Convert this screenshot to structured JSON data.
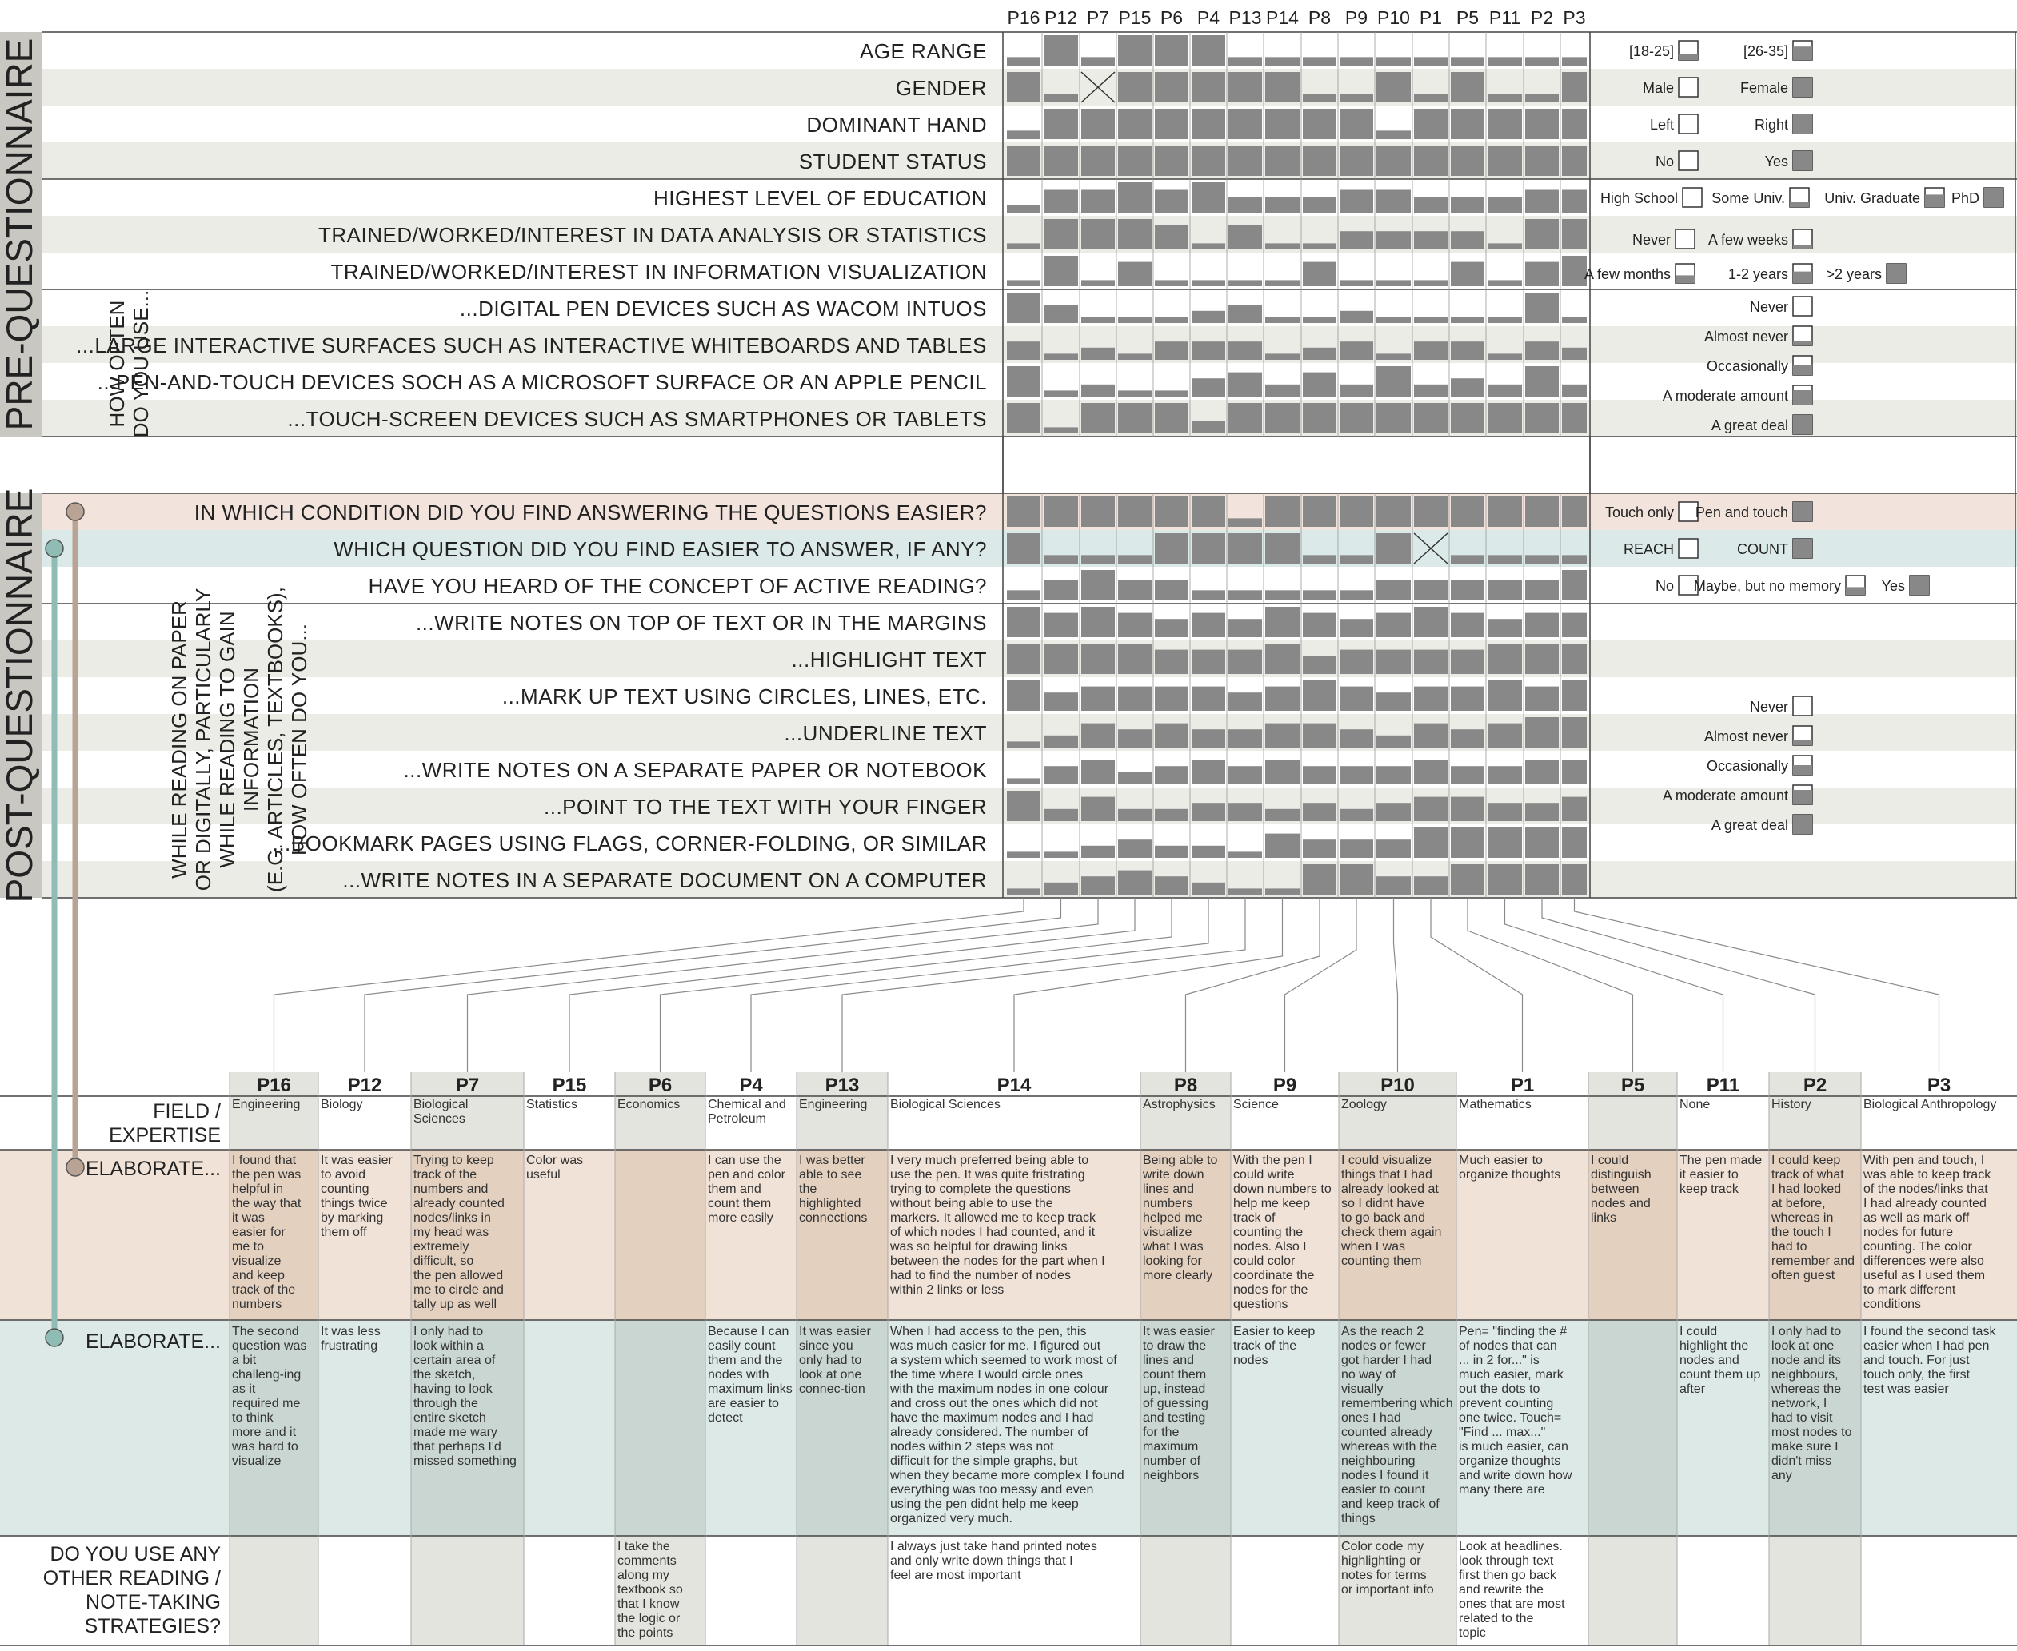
{
  "participants": [
    "P16",
    "P12",
    "P7",
    "P15",
    "P6",
    "P4",
    "P13",
    "P14",
    "P8",
    "P9",
    "P10",
    "P1",
    "P5",
    "P11",
    "P2",
    "P3"
  ],
  "sections": {
    "pre": "PRE-QUESTIONNAIRE",
    "post": "POST-QUESTIONNAIRE"
  },
  "group_labels": {
    "how_often": [
      "HOW OFTEN",
      "DO YOU USE..."
    ],
    "reading": [
      "WHILE READING ON PAPER",
      "OR DIGITALLY, PARTICULARLY",
      "WHILE READING TO GAIN",
      "INFORMATION",
      "(E.G. ARTICLES, TEXTBOOKS),",
      "HOW OFTEN DO YOU..."
    ]
  },
  "pre_questions": [
    {
      "label": "AGE RANGE",
      "levels": 2,
      "values": [
        1,
        2,
        1,
        2,
        2,
        2,
        1,
        1,
        1,
        1,
        1,
        1,
        1,
        1,
        1,
        1
      ]
    },
    {
      "label": "GENDER",
      "levels": 2,
      "values": [
        2,
        1,
        "x",
        2,
        2,
        2,
        2,
        2,
        1,
        1,
        2,
        1,
        2,
        1,
        1,
        2
      ]
    },
    {
      "label": "DOMINANT HAND",
      "levels": 2,
      "values": [
        1,
        2,
        2,
        2,
        2,
        2,
        2,
        2,
        2,
        2,
        1,
        2,
        2,
        2,
        2,
        2
      ]
    },
    {
      "label": "STUDENT STATUS",
      "levels": 2,
      "values": [
        2,
        2,
        2,
        2,
        2,
        2,
        2,
        2,
        2,
        2,
        2,
        2,
        2,
        2,
        2,
        2
      ]
    },
    {
      "label": "HIGHEST LEVEL OF EDUCATION",
      "levels": 4,
      "values": [
        1,
        3,
        3,
        4,
        3,
        4,
        2,
        2,
        2,
        3,
        3,
        2,
        2,
        2,
        3,
        3
      ]
    },
    {
      "label": "TRAINED/WORKED/INTEREST IN DATA ANALYSIS OR STATISTICS",
      "levels": 5,
      "values": [
        1,
        5,
        5,
        5,
        4,
        1,
        4,
        1,
        1,
        3,
        3,
        3,
        3,
        1,
        5,
        5
      ]
    },
    {
      "label": "TRAINED/WORKED/INTEREST IN INFORMATION VISUALIZATION",
      "levels": 5,
      "values": [
        1,
        5,
        1,
        4,
        1,
        1,
        1,
        1,
        4,
        1,
        1,
        1,
        4,
        1,
        4,
        5
      ]
    },
    {
      "label": "...DIGITAL PEN DEVICES SUCH AS WACOM INTUOS",
      "levels": 5,
      "values": [
        5,
        3,
        1,
        1,
        1,
        2,
        3,
        1,
        1,
        2,
        1,
        1,
        1,
        1,
        5,
        1
      ]
    },
    {
      "label": "...LARGE INTERACTIVE SURFACES SUCH AS INTERACTIVE WHITEBOARDS AND TABLES",
      "levels": 5,
      "values": [
        3,
        1,
        2,
        1,
        3,
        3,
        3,
        1,
        2,
        3,
        1,
        3,
        3,
        1,
        3,
        2
      ]
    },
    {
      "label": "...PEN-AND-TOUCH DEVICES SOCH AS A MICROSOFT SURFACE OR AN APPLE PENCIL",
      "levels": 5,
      "values": [
        5,
        1,
        2,
        1,
        1,
        3,
        4,
        2,
        4,
        2,
        5,
        2,
        3,
        2,
        5,
        2
      ]
    },
    {
      "label": "...TOUCH-SCREEN DEVICES SUCH AS SMARTPHONES OR TABLETS",
      "levels": 5,
      "values": [
        5,
        1,
        5,
        5,
        5,
        2,
        5,
        5,
        5,
        5,
        5,
        5,
        5,
        5,
        5,
        5
      ]
    }
  ],
  "post_questions": [
    {
      "label": "IN WHICH CONDITION DID YOU FIND ANSWERING THE QUESTIONS EASIER?",
      "levels": 2,
      "values": [
        2,
        2,
        2,
        2,
        2,
        2,
        1,
        2,
        2,
        2,
        2,
        2,
        2,
        2,
        2,
        2
      ]
    },
    {
      "label": "WHICH QUESTION DID YOU FIND EASIER TO ANSWER, IF ANY?",
      "levels": 2,
      "values": [
        2,
        1,
        1,
        1,
        2,
        2,
        2,
        2,
        1,
        1,
        2,
        "x",
        1,
        1,
        1,
        1
      ]
    },
    {
      "label": "HAVE YOU HEARD OF THE CONCEPT OF ACTIVE READING?",
      "levels": 3,
      "values": [
        1,
        2,
        3,
        2,
        2,
        1,
        1,
        1,
        1,
        1,
        2,
        2,
        2,
        2,
        2,
        3
      ]
    },
    {
      "label": "...WRITE NOTES ON TOP OF TEXT OR IN THE MARGINS",
      "levels": 5,
      "values": [
        5,
        4,
        5,
        4,
        3,
        4,
        3,
        5,
        4,
        3,
        4,
        5,
        4,
        3,
        4,
        4
      ]
    },
    {
      "label": "...HIGHLIGHT TEXT",
      "levels": 5,
      "values": [
        5,
        5,
        5,
        5,
        4,
        4,
        4,
        5,
        3,
        4,
        4,
        4,
        4,
        5,
        5,
        5
      ]
    },
    {
      "label": "...MARK UP TEXT USING CIRCLES, LINES, ETC.",
      "levels": 5,
      "values": [
        5,
        3,
        4,
        4,
        4,
        4,
        3,
        4,
        5,
        4,
        3,
        4,
        4,
        5,
        4,
        5
      ]
    },
    {
      "label": "...UNDERLINE TEXT",
      "levels": 5,
      "values": [
        1,
        2,
        4,
        3,
        4,
        3,
        3,
        4,
        4,
        3,
        2,
        4,
        3,
        4,
        5,
        5
      ]
    },
    {
      "label": "...WRITE NOTES ON A SEPARATE PAPER OR NOTEBOOK",
      "levels": 5,
      "values": [
        1,
        3,
        4,
        2,
        3,
        4,
        3,
        4,
        3,
        3,
        3,
        4,
        3,
        3,
        4,
        4
      ]
    },
    {
      "label": "...POINT TO THE TEXT WITH YOUR FINGER",
      "levels": 5,
      "values": [
        5,
        2,
        4,
        2,
        2,
        3,
        3,
        2,
        3,
        2,
        3,
        4,
        4,
        3,
        3,
        4
      ]
    },
    {
      "label": "...BOOKMARK PAGES USING FLAGS, CORNER-FOLDING, OR SIMILAR",
      "levels": 5,
      "values": [
        1,
        1,
        2,
        3,
        2,
        2,
        1,
        4,
        3,
        3,
        3,
        5,
        5,
        5,
        5,
        5
      ]
    },
    {
      "label": "...WRITE NOTES IN A SEPARATE DOCUMENT ON A COMPUTER",
      "levels": 5,
      "values": [
        1,
        2,
        3,
        4,
        3,
        2,
        1,
        1,
        5,
        5,
        3,
        3,
        5,
        5,
        5,
        5
      ]
    }
  ],
  "legends": {
    "age": [
      "[18-25]",
      "[26-35]"
    ],
    "gender": [
      "Male",
      "Female"
    ],
    "hand": [
      "Left",
      "Right"
    ],
    "student": [
      "No",
      "Yes"
    ],
    "education": [
      "High School",
      "Some Univ.",
      "Univ. Graduate",
      "PhD"
    ],
    "experience": [
      "Never",
      "A few weeks",
      "A few months",
      "1-2 years",
      ">2 years"
    ],
    "frequency": [
      "Never",
      "Almost never",
      "Occasionally",
      "A moderate amount",
      "A great deal"
    ],
    "condition": [
      "Touch only",
      "Pen and touch"
    ],
    "question": [
      "REACH",
      "COUNT"
    ],
    "heard": [
      "No",
      "Maybe, but no memory",
      "Yes"
    ]
  },
  "bottom_order": [
    "P16",
    "P12",
    "P7",
    "P15",
    "P6",
    "P4",
    "P13",
    "P14",
    "P8",
    "P9",
    "P10",
    "P1",
    "P5",
    "P11",
    "P2",
    "P3"
  ],
  "row_labels": {
    "field": [
      "FIELD /",
      "EXPERTISE"
    ],
    "elab1": "ELABORATE...",
    "elab2": "ELABORATE...",
    "strategies": [
      "DO YOU USE ANY",
      "OTHER READING /",
      "NOTE-TAKING",
      "STRATEGIES?"
    ]
  },
  "fields": [
    "Engineering",
    "Biology",
    "Biological Sciences",
    "Statistics",
    "Economics",
    "Chemical and Petroleum",
    "Engineering",
    "Biological Sciences",
    "Astrophysics",
    "Science",
    "Zoology",
    "Mathematics",
    "",
    "None",
    "History",
    "Biological Anthropology"
  ],
  "elaborate_condition": [
    "I found that the pen was helpful in the way that it was easier for me to visualize and keep track of the numbers",
    "It was easier to avoid counting things twice by marking them off",
    "Trying to keep track of the numbers and already counted nodes/links in my head was extremely difficult, so the pen allowed me to circle and tally up as well",
    "Color was useful",
    "",
    "I can use the pen and color them and count them more easily",
    "I was better able to see the highlighted connections",
    "I very much preferred being able to use the pen. It was quite fristrating trying to complete the questions without being able to use the markers. It allowed me to keep track of which nodes I had counted, and it was so helpful for drawing links between the nodes for the part when I had to find the number of nodes within 2 links or less",
    "Being able to write down lines and numbers helped me visualize what I was looking for more clearly",
    "With the pen I could write down numbers to help me keep track of counting the nodes. Also I could color coordinate the nodes for the questions",
    "I could visualize things that I had already looked at so I didnt have to go back and check them again when I was counting them",
    "Much easier to organize thoughts",
    "I could distinguish between nodes and links",
    "The pen made it easier to keep track",
    "I could keep track of what I had looked at before, whereas in the touch I had to remember and often guest",
    "With pen and touch, I was able to keep track of the nodes/links that I had already counted as well as mark off nodes for future counting. The color differences were also useful as I used them to mark different conditions"
  ],
  "elaborate_question": [
    "The second question was a bit challeng-ing as it required me to think more and it was hard to visualize",
    "It was less frustrating",
    "I only had to look within a certain area of the sketch, having to look through the entire sketch made me wary that perhaps I'd missed something",
    "",
    "",
    "Because I can easily count them and the nodes with maximum links are easier to detect",
    "It was easier since you only had to look at one connec-tion",
    "When I had access to the pen, this was much easier for me. I figured out a system which seemed to work most of the time where I would circle ones with the maximum nodes in one colour and cross out the ones which did not have the maximum nodes and I had already considered. The number of nodes within 2 steps was not difficult for the simple graphs, but when they became more complex I found everything was too messy and even using the pen didnt help me keep organized very much.",
    "It was easier to draw the lines and count them up, instead of guessing and testing for the maximum number of neighbors",
    "Easier to keep track of the nodes",
    "As the reach 2 nodes or fewer got harder I had no way of visually remembering which ones I had counted already whereas with the neighbouring nodes I found it easier to count and keep track of things",
    "Pen= \"finding the # of nodes that can ... in 2 for...\" is much easier, mark out the dots to prevent counting one twice. Touch= \"Find ... max...\" is much easier, can organize thoughts and write down how many there are",
    "",
    "I could highlight the nodes and count them up after",
    "I only had to look at one node and its neighbours, whereas the network, I had to visit most nodes to make sure I didn't miss any",
    "I found the second task easier when I had pen and touch. For just touch only, the first test was easier"
  ],
  "strategies": [
    "",
    "",
    "",
    "",
    "I take  the comments along my textbook so that I know the logic or the points",
    "",
    "",
    "I always just take hand printed notes and only write down things that I feel are most important",
    "",
    "",
    "Color code my highlighting or notes for terms or important info",
    "Look at headlines. look through text first then go back and rewrite the ones that are most related to the topic",
    "",
    "",
    "",
    ""
  ],
  "colors": {
    "bar": "#888888",
    "band_gray": "#ebece6",
    "band_pink": "#f2e3dc",
    "band_teal": "#dbe9e8",
    "elab1_bg": "#f1e2d7",
    "elab1_col": "#e3d0bf",
    "elab2_bg": "#dde9e7",
    "elab2_col": "#c9d6d2",
    "col_gray": "#e3e4dd",
    "section_label": "#c8c7c2",
    "marker_brown": "#b9a394",
    "marker_teal": "#8fbdb5"
  }
}
